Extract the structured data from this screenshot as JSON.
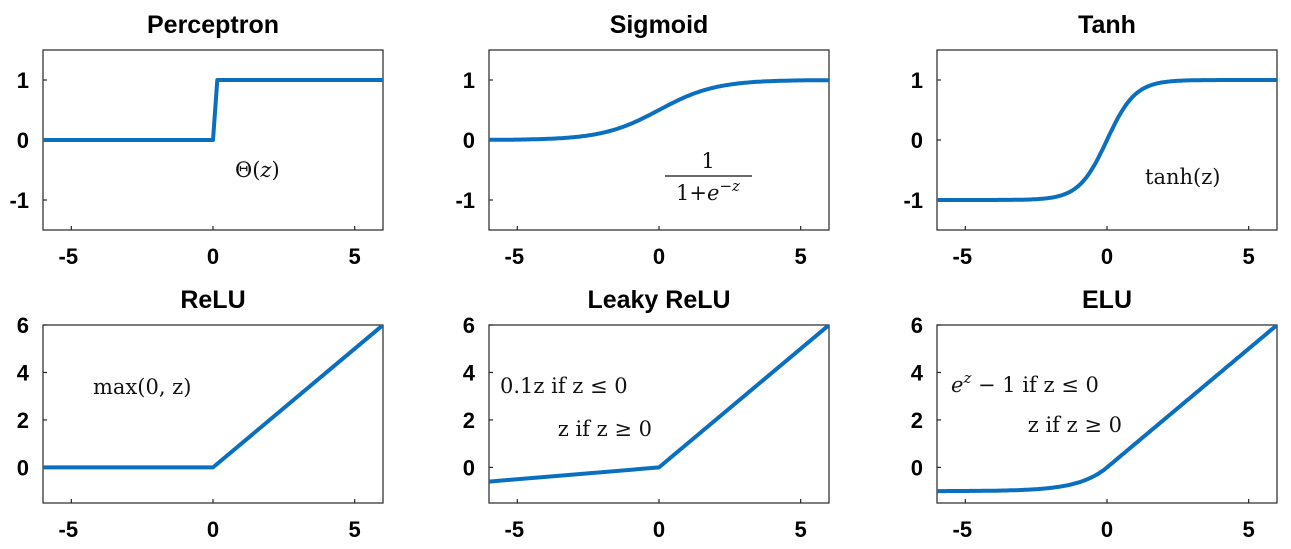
{
  "chart_data": [
    {
      "type": "line",
      "title": "Perceptron",
      "formula": [
        "Θ(z)"
      ],
      "xlim": [
        -6,
        6
      ],
      "ylim": [
        -1.5,
        1.5
      ],
      "xticks": [
        -5,
        0,
        5
      ],
      "yticks": [
        1,
        0,
        -1
      ],
      "x": [
        -6,
        0,
        0.15,
        6
      ],
      "y": [
        0,
        0,
        1,
        1
      ],
      "color": "#0a6fbf"
    },
    {
      "type": "line",
      "title": "Sigmoid",
      "formula": [
        "1",
        "1+e^−z"
      ],
      "function": "sigmoid",
      "xlim": [
        -6,
        6
      ],
      "ylim": [
        -1.5,
        1.5
      ],
      "xticks": [
        -5,
        0,
        5
      ],
      "yticks": [
        1,
        0,
        -1
      ],
      "x": [
        -6,
        -5,
        -4,
        -3,
        -2,
        -1,
        0,
        1,
        2,
        3,
        4,
        5,
        6
      ],
      "y": [
        0.002,
        0.007,
        0.018,
        0.047,
        0.119,
        0.269,
        0.5,
        0.731,
        0.881,
        0.953,
        0.982,
        0.993,
        0.998
      ],
      "color": "#0a6fbf"
    },
    {
      "type": "line",
      "title": "Tanh",
      "formula": [
        "tanh(z)"
      ],
      "function": "tanh",
      "xlim": [
        -6,
        6
      ],
      "ylim": [
        -1.5,
        1.5
      ],
      "xticks": [
        -5,
        0,
        5
      ],
      "yticks": [
        1,
        0,
        -1
      ],
      "x": [
        -6,
        -4,
        -3,
        -2,
        -1,
        0,
        1,
        2,
        3,
        4,
        6
      ],
      "y": [
        -1.0,
        -0.999,
        -0.995,
        -0.964,
        -0.762,
        0,
        0.762,
        0.964,
        0.995,
        0.999,
        1.0
      ],
      "color": "#0a6fbf"
    },
    {
      "type": "line",
      "title": "ReLU",
      "formula": [
        "max(0, z)"
      ],
      "xlim": [
        -6,
        6
      ],
      "ylim": [
        -1.5,
        6
      ],
      "xticks": [
        -5,
        0,
        5
      ],
      "yticks": [
        6,
        4,
        2,
        0
      ],
      "x": [
        -6,
        0,
        6
      ],
      "y": [
        0,
        0,
        6
      ],
      "color": "#0a6fbf"
    },
    {
      "type": "line",
      "title": "Leaky ReLU",
      "formula": [
        "0.1z if z ≤ 0",
        "z if z ≥ 0"
      ],
      "xlim": [
        -6,
        6
      ],
      "ylim": [
        -1.5,
        6
      ],
      "xticks": [
        -5,
        0,
        5
      ],
      "yticks": [
        6,
        4,
        2,
        0
      ],
      "x": [
        -6,
        0,
        6
      ],
      "y": [
        -0.6,
        0,
        6
      ],
      "color": "#0a6fbf"
    },
    {
      "type": "line",
      "title": "ELU",
      "formula": [
        "e^z − 1 if z ≤ 0",
        "z if z ≥ 0"
      ],
      "function": "elu",
      "xlim": [
        -6,
        6
      ],
      "ylim": [
        -1.5,
        6
      ],
      "xticks": [
        -5,
        0,
        5
      ],
      "yticks": [
        6,
        4,
        2,
        0
      ],
      "x": [
        -6,
        -4,
        -3,
        -2,
        -1.5,
        -1,
        -0.5,
        0,
        1,
        2,
        3,
        4,
        5,
        6
      ],
      "y": [
        -0.998,
        -0.982,
        -0.95,
        -0.865,
        -0.777,
        -0.632,
        -0.393,
        0,
        1,
        2,
        3,
        4,
        5,
        6
      ],
      "color": "#0a6fbf"
    }
  ]
}
